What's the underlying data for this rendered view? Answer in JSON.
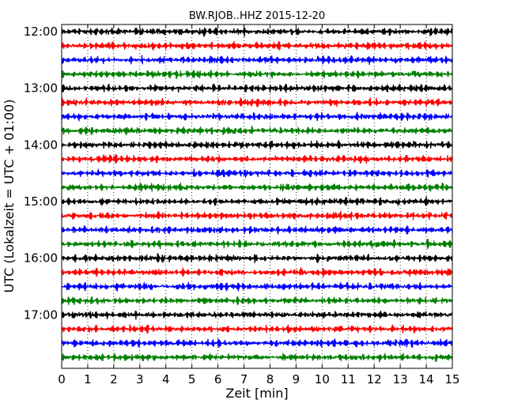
{
  "chart_data": {
    "type": "line",
    "title": "BW.RJOB..HHZ 2015-12-20",
    "xlabel": "Zeit  [min]",
    "ylabel": "UTC (Lokalzeit = UTC + 01:00)",
    "xlim": [
      0,
      15
    ],
    "x_ticks": [
      "0",
      "1",
      "2",
      "3",
      "4",
      "5",
      "6",
      "7",
      "8",
      "9",
      "10",
      "11",
      "12",
      "13",
      "14",
      "15"
    ],
    "y_tick_labels": [
      "12:00",
      "13:00",
      "14:00",
      "15:00",
      "16:00",
      "17:00"
    ],
    "trace_interval_min": 15,
    "start_time": "12:00",
    "end_time": "18:00",
    "grid": "vertical dotted at each minute",
    "colors": [
      "#000000",
      "#ff0000",
      "#0000ff",
      "#008000"
    ],
    "series": [
      {
        "start": "12:00"
      },
      {
        "start": "12:15"
      },
      {
        "start": "12:30"
      },
      {
        "start": "12:45"
      },
      {
        "start": "13:00"
      },
      {
        "start": "13:15"
      },
      {
        "start": "13:30"
      },
      {
        "start": "13:45"
      },
      {
        "start": "14:00"
      },
      {
        "start": "14:15"
      },
      {
        "start": "14:30"
      },
      {
        "start": "14:45"
      },
      {
        "start": "15:00"
      },
      {
        "start": "15:15"
      },
      {
        "start": "15:30"
      },
      {
        "start": "15:45"
      },
      {
        "start": "16:00"
      },
      {
        "start": "16:15"
      },
      {
        "start": "16:30"
      },
      {
        "start": "16:45"
      },
      {
        "start": "17:00"
      },
      {
        "start": "17:15"
      },
      {
        "start": "17:30"
      },
      {
        "start": "17:45"
      }
    ]
  }
}
